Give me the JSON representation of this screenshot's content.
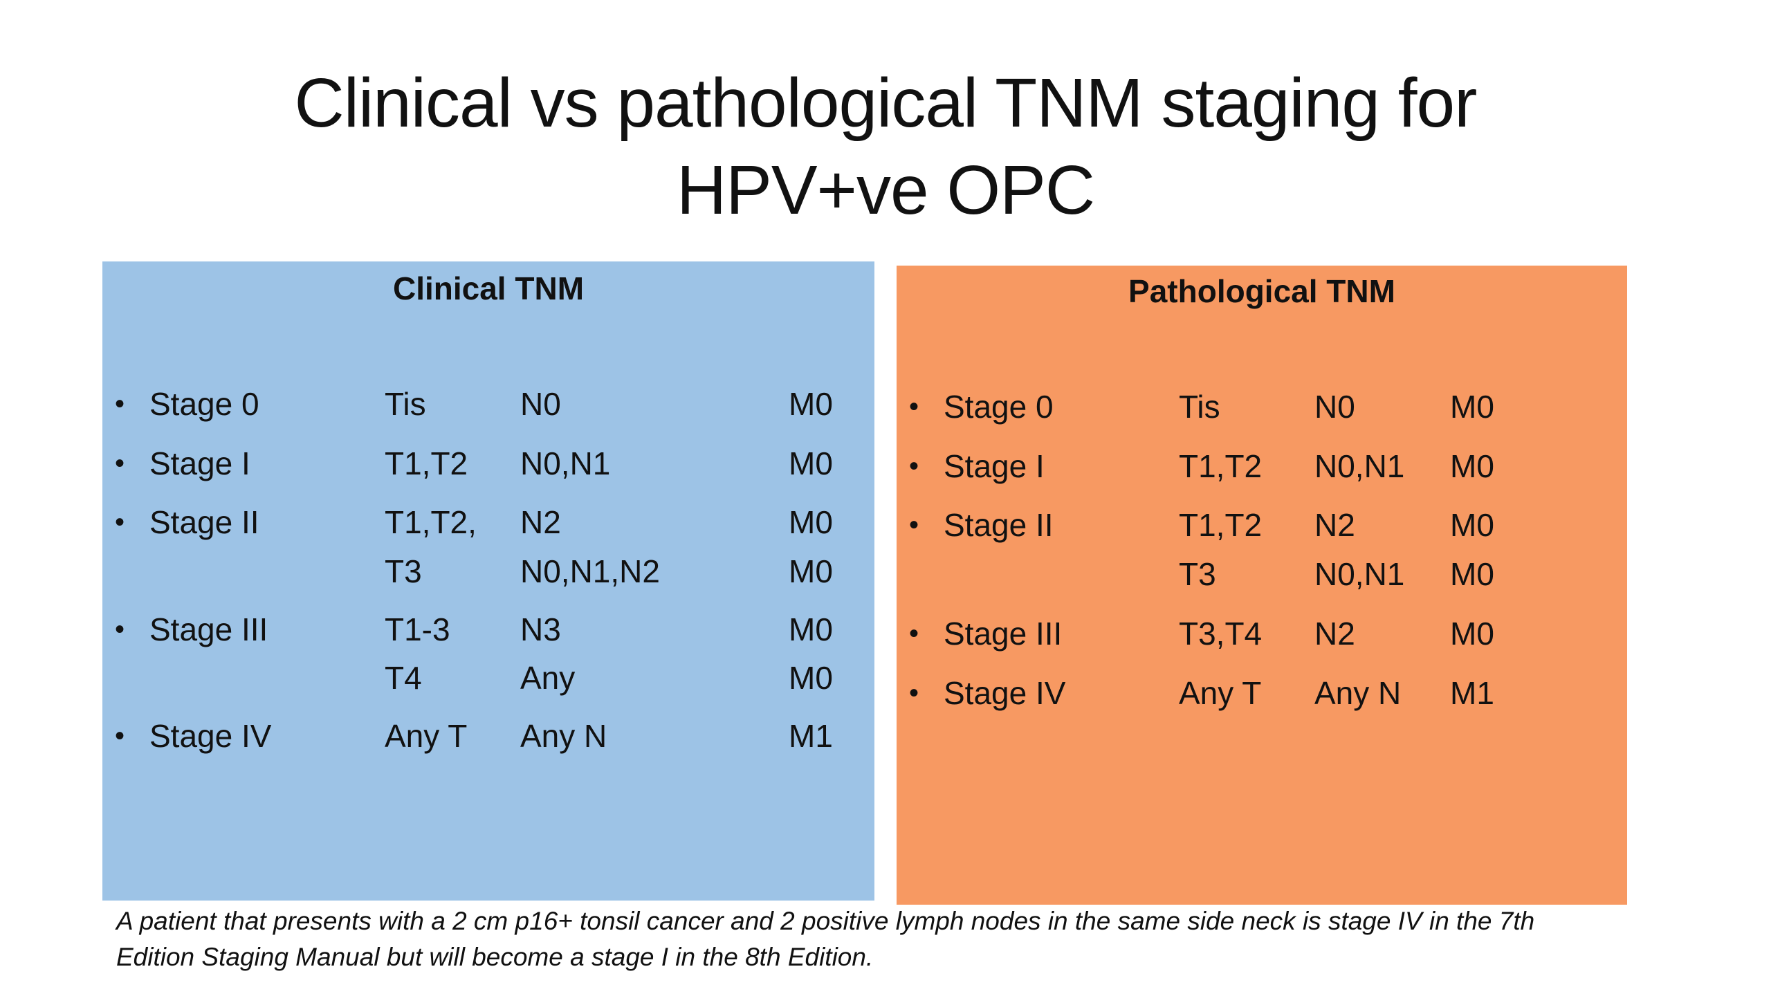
{
  "title": {
    "line1": "Clinical vs pathological TNM staging for",
    "line2": "HPV+ve OPC"
  },
  "clinical": {
    "heading": "Clinical TNM",
    "rows": [
      {
        "bullet": "•",
        "stage": "Stage 0",
        "t": "Tis",
        "n": "N0",
        "m": "M0"
      },
      {
        "bullet": "•",
        "stage": "Stage I",
        "t": "T1,T2",
        "n": "N0,N1",
        "m": "M0"
      },
      {
        "bullet": "•",
        "stage": "Stage II",
        "t": "T1,T2,",
        "n": "N2",
        "m": "M0"
      },
      {
        "bullet": "",
        "stage": "",
        "t": "T3",
        "n": "N0,N1,N2",
        "m": "M0"
      },
      {
        "bullet": "•",
        "stage": "Stage III",
        "t": "T1-3",
        "n": "N3",
        "m": "M0"
      },
      {
        "bullet": "",
        "stage": "",
        "t": "T4",
        "n": "Any",
        "m": "M0"
      },
      {
        "bullet": "•",
        "stage": "Stage IV",
        "t": "Any T",
        "n": "Any N",
        "m": "M1"
      }
    ]
  },
  "pathological": {
    "heading": "Pathological TNM",
    "rows": [
      {
        "bullet": "•",
        "stage": "Stage 0",
        "t": "Tis",
        "n": "N0",
        "m": "M0"
      },
      {
        "bullet": "•",
        "stage": "Stage I",
        "t": "T1,T2",
        "n": "N0,N1",
        "m": "M0"
      },
      {
        "bullet": "•",
        "stage": "Stage II",
        "t": "T1,T2",
        "n": "N2",
        "m": "M0"
      },
      {
        "bullet": "",
        "stage": "",
        "t": "T3",
        "n": "N0,N1",
        "m": "M0"
      },
      {
        "bullet": "•",
        "stage": "Stage III",
        "t": "T3,T4",
        "n": "N2",
        "m": "M0"
      },
      {
        "bullet": "•",
        "stage": "Stage IV",
        "t": "Any T",
        "n": "Any N",
        "m": "M1"
      }
    ]
  },
  "footnote": {
    "line1": "A patient that presents with a 2 cm p16+ tonsil cancer and 2 positive lymph nodes in the same side neck is stage IV in the 7th",
    "line2": "Edition Staging Manual but will become a stage I in the 8th Edition."
  },
  "colors": {
    "clinical_panel": "#9dc3e6",
    "pathological_panel": "#f79962"
  }
}
